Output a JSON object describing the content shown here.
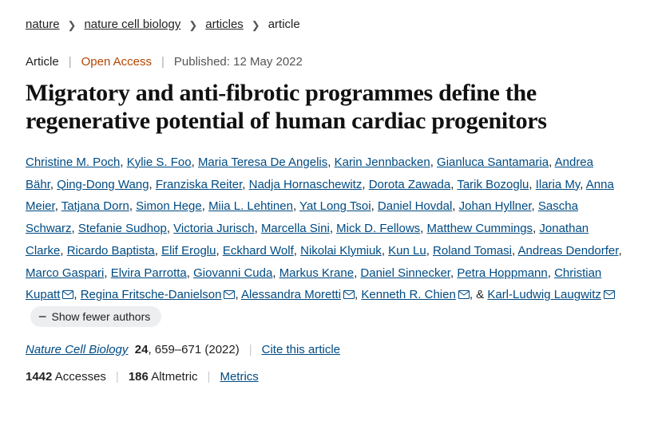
{
  "breadcrumb": {
    "items": [
      {
        "label": "nature"
      },
      {
        "label": "nature cell biology"
      },
      {
        "label": "articles"
      }
    ],
    "current": "article"
  },
  "meta": {
    "type": "Article",
    "open_access": "Open Access",
    "published_label": "Published:",
    "published_date": "12 May 2022"
  },
  "title": "Migratory and anti-fibrotic programmes define the regenerative potential of human cardiac progenitors",
  "authors": [
    {
      "name": "Christine M. Poch"
    },
    {
      "name": "Kylie S. Foo"
    },
    {
      "name": "Maria Teresa De Angelis"
    },
    {
      "name": "Karin Jennbacken"
    },
    {
      "name": "Gianluca Santamaria"
    },
    {
      "name": "Andrea Bähr"
    },
    {
      "name": "Qing-Dong Wang"
    },
    {
      "name": "Franziska Reiter"
    },
    {
      "name": "Nadja Hornaschewitz"
    },
    {
      "name": "Dorota Zawada"
    },
    {
      "name": "Tarik Bozoglu"
    },
    {
      "name": "Ilaria My"
    },
    {
      "name": "Anna Meier"
    },
    {
      "name": "Tatjana Dorn"
    },
    {
      "name": "Simon Hege"
    },
    {
      "name": "Miia L. Lehtinen"
    },
    {
      "name": "Yat Long Tsoi"
    },
    {
      "name": "Daniel Hovdal"
    },
    {
      "name": "Johan Hyllner"
    },
    {
      "name": "Sascha Schwarz"
    },
    {
      "name": "Stefanie Sudhop"
    },
    {
      "name": "Victoria Jurisch"
    },
    {
      "name": "Marcella Sini"
    },
    {
      "name": "Mick D. Fellows"
    },
    {
      "name": "Matthew Cummings"
    },
    {
      "name": "Jonathan Clarke"
    },
    {
      "name": "Ricardo Baptista"
    },
    {
      "name": "Elif Eroglu"
    },
    {
      "name": "Eckhard Wolf"
    },
    {
      "name": "Nikolai Klymiuk"
    },
    {
      "name": "Kun Lu"
    },
    {
      "name": "Roland Tomasi"
    },
    {
      "name": "Andreas Dendorfer"
    },
    {
      "name": "Marco Gaspari"
    },
    {
      "name": "Elvira Parrotta"
    },
    {
      "name": "Giovanni Cuda"
    },
    {
      "name": "Markus Krane"
    },
    {
      "name": "Daniel Sinnecker"
    },
    {
      "name": "Petra Hoppmann"
    },
    {
      "name": "Christian Kupatt",
      "mail": true
    },
    {
      "name": "Regina Fritsche-Danielson",
      "mail": true
    },
    {
      "name": "Alessandra Moretti",
      "mail": true
    },
    {
      "name": "Kenneth R. Chien",
      "mail": true
    },
    {
      "name": "Karl-Ludwig Laugwitz",
      "mail": true,
      "last": true
    }
  ],
  "fewer_label": "Show fewer authors",
  "citation": {
    "journal": "Nature Cell Biology",
    "volume": "24",
    "pages": "659–671",
    "year": "(2022)",
    "cite_label": "Cite this article"
  },
  "metrics": {
    "accesses_num": "1442",
    "accesses_label": "Accesses",
    "altmetric_num": "186",
    "altmetric_label": "Altmetric",
    "metrics_link": "Metrics"
  },
  "colors": {
    "link": "#004b83",
    "open_access": "#b54700",
    "sep": "#cccccc",
    "text": "#222222",
    "muted": "#555555",
    "pill_bg": "#eceef0"
  }
}
